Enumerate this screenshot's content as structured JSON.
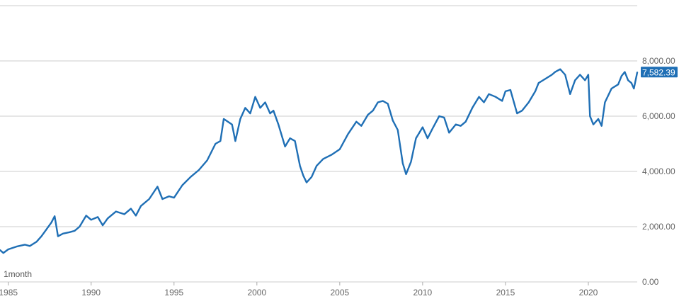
{
  "chart_data": {
    "type": "line",
    "interval_label": "1month",
    "last_value_label": "7,582.39",
    "x_ticks": [
      1985,
      1990,
      1995,
      2000,
      2005,
      2010,
      2015,
      2020
    ],
    "x_range": [
      1984.5,
      2022.95
    ],
    "y_ticks": [
      0,
      2000,
      4000,
      6000,
      8000
    ],
    "y_tick_labels": [
      "0.00",
      "2,000.00",
      "4,000.00",
      "6,000.00",
      "8,000.00"
    ],
    "y_range": [
      0,
      10000
    ],
    "grid": "horizontal",
    "line_color": "#1f6fb5",
    "badge_color": "#1f6fb5",
    "series": [
      {
        "points": [
          [
            1984.5,
            1150
          ],
          [
            1984.7,
            1050
          ],
          [
            1985.0,
            1180
          ],
          [
            1985.5,
            1280
          ],
          [
            1986.0,
            1350
          ],
          [
            1986.3,
            1300
          ],
          [
            1986.7,
            1450
          ],
          [
            1987.0,
            1650
          ],
          [
            1987.3,
            1900
          ],
          [
            1987.6,
            2150
          ],
          [
            1987.8,
            2380
          ],
          [
            1988.0,
            1650
          ],
          [
            1988.3,
            1750
          ],
          [
            1988.7,
            1800
          ],
          [
            1989.0,
            1850
          ],
          [
            1989.3,
            2000
          ],
          [
            1989.7,
            2400
          ],
          [
            1990.0,
            2250
          ],
          [
            1990.4,
            2350
          ],
          [
            1990.7,
            2050
          ],
          [
            1991.0,
            2300
          ],
          [
            1991.5,
            2550
          ],
          [
            1992.0,
            2450
          ],
          [
            1992.4,
            2650
          ],
          [
            1992.7,
            2400
          ],
          [
            1993.0,
            2750
          ],
          [
            1993.5,
            3000
          ],
          [
            1994.0,
            3450
          ],
          [
            1994.3,
            3000
          ],
          [
            1994.7,
            3100
          ],
          [
            1995.0,
            3050
          ],
          [
            1995.5,
            3500
          ],
          [
            1996.0,
            3800
          ],
          [
            1996.5,
            4050
          ],
          [
            1997.0,
            4400
          ],
          [
            1997.5,
            5000
          ],
          [
            1997.8,
            5100
          ],
          [
            1998.0,
            5900
          ],
          [
            1998.5,
            5700
          ],
          [
            1998.7,
            5100
          ],
          [
            1999.0,
            5900
          ],
          [
            1999.3,
            6300
          ],
          [
            1999.6,
            6100
          ],
          [
            1999.9,
            6700
          ],
          [
            2000.2,
            6300
          ],
          [
            2000.5,
            6500
          ],
          [
            2000.8,
            6100
          ],
          [
            2001.0,
            6200
          ],
          [
            2001.3,
            5700
          ],
          [
            2001.7,
            4900
          ],
          [
            2002.0,
            5200
          ],
          [
            2002.3,
            5100
          ],
          [
            2002.6,
            4200
          ],
          [
            2002.8,
            3850
          ],
          [
            2003.0,
            3600
          ],
          [
            2003.3,
            3800
          ],
          [
            2003.6,
            4200
          ],
          [
            2004.0,
            4450
          ],
          [
            2004.5,
            4600
          ],
          [
            2005.0,
            4800
          ],
          [
            2005.5,
            5350
          ],
          [
            2006.0,
            5800
          ],
          [
            2006.3,
            5650
          ],
          [
            2006.7,
            6050
          ],
          [
            2007.0,
            6200
          ],
          [
            2007.3,
            6500
          ],
          [
            2007.6,
            6550
          ],
          [
            2007.9,
            6450
          ],
          [
            2008.2,
            5850
          ],
          [
            2008.5,
            5500
          ],
          [
            2008.8,
            4300
          ],
          [
            2009.0,
            3900
          ],
          [
            2009.3,
            4350
          ],
          [
            2009.6,
            5200
          ],
          [
            2010.0,
            5600
          ],
          [
            2010.3,
            5200
          ],
          [
            2010.6,
            5550
          ],
          [
            2011.0,
            6000
          ],
          [
            2011.3,
            5950
          ],
          [
            2011.6,
            5400
          ],
          [
            2012.0,
            5700
          ],
          [
            2012.3,
            5650
          ],
          [
            2012.6,
            5800
          ],
          [
            2013.0,
            6300
          ],
          [
            2013.4,
            6700
          ],
          [
            2013.7,
            6500
          ],
          [
            2014.0,
            6800
          ],
          [
            2014.4,
            6700
          ],
          [
            2014.8,
            6550
          ],
          [
            2015.0,
            6900
          ],
          [
            2015.3,
            6950
          ],
          [
            2015.7,
            6100
          ],
          [
            2016.0,
            6200
          ],
          [
            2016.4,
            6500
          ],
          [
            2016.8,
            6900
          ],
          [
            2017.0,
            7200
          ],
          [
            2017.4,
            7350
          ],
          [
            2017.8,
            7500
          ],
          [
            2018.0,
            7600
          ],
          [
            2018.3,
            7700
          ],
          [
            2018.6,
            7500
          ],
          [
            2018.9,
            6800
          ],
          [
            2019.2,
            7300
          ],
          [
            2019.5,
            7500
          ],
          [
            2019.8,
            7300
          ],
          [
            2020.0,
            7500
          ],
          [
            2020.1,
            6000
          ],
          [
            2020.3,
            5700
          ],
          [
            2020.6,
            5900
          ],
          [
            2020.8,
            5650
          ],
          [
            2021.0,
            6500
          ],
          [
            2021.4,
            7000
          ],
          [
            2021.8,
            7150
          ],
          [
            2022.0,
            7450
          ],
          [
            2022.2,
            7600
          ],
          [
            2022.4,
            7300
          ],
          [
            2022.6,
            7200
          ],
          [
            2022.75,
            7000
          ],
          [
            2022.95,
            7582
          ]
        ]
      }
    ]
  }
}
